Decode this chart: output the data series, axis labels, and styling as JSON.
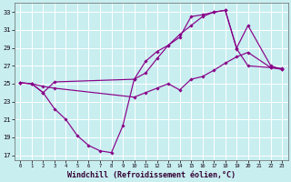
{
  "background_color": "#c8eef0",
  "grid_color": "#ffffff",
  "line_color": "#880088",
  "xlabel": "Windchill (Refroidissement éolien,°C)",
  "xmin": -0.5,
  "xmax": 23.5,
  "ymin": 16.5,
  "ymax": 34.0,
  "yticks": [
    17,
    19,
    21,
    23,
    25,
    27,
    29,
    31,
    33
  ],
  "xticks": [
    0,
    1,
    2,
    3,
    4,
    5,
    6,
    7,
    8,
    9,
    10,
    11,
    12,
    13,
    14,
    15,
    16,
    17,
    18,
    19,
    20,
    21,
    22,
    23
  ],
  "series": [
    {
      "x": [
        0,
        1,
        2,
        3,
        10,
        11,
        12,
        13,
        14,
        15,
        16,
        17,
        18,
        19,
        20,
        22,
        23
      ],
      "y": [
        25.1,
        25.0,
        24.7,
        24.5,
        23.5,
        24.0,
        24.5,
        25.0,
        24.3,
        25.5,
        25.8,
        26.5,
        27.3,
        28.0,
        28.5,
        26.8,
        26.7
      ]
    },
    {
      "x": [
        0,
        1,
        2,
        3,
        4,
        5,
        6,
        7,
        8,
        9,
        10,
        11,
        12,
        13,
        14,
        15,
        16,
        17,
        18,
        19,
        20,
        22,
        23
      ],
      "y": [
        25.1,
        25.0,
        24.0,
        22.2,
        21.0,
        19.2,
        18.1,
        17.5,
        17.3,
        20.3,
        25.5,
        26.2,
        27.8,
        29.3,
        30.2,
        32.5,
        32.7,
        33.0,
        33.2,
        28.9,
        27.0,
        26.8,
        26.6
      ]
    },
    {
      "x": [
        0,
        1,
        2,
        3,
        10,
        11,
        12,
        13,
        14,
        15,
        16,
        17,
        18,
        19,
        20,
        22,
        23
      ],
      "y": [
        25.1,
        25.0,
        24.0,
        25.2,
        25.5,
        27.5,
        28.6,
        29.3,
        30.5,
        31.5,
        32.5,
        33.0,
        33.2,
        29.0,
        31.5,
        27.0,
        26.6
      ]
    }
  ]
}
